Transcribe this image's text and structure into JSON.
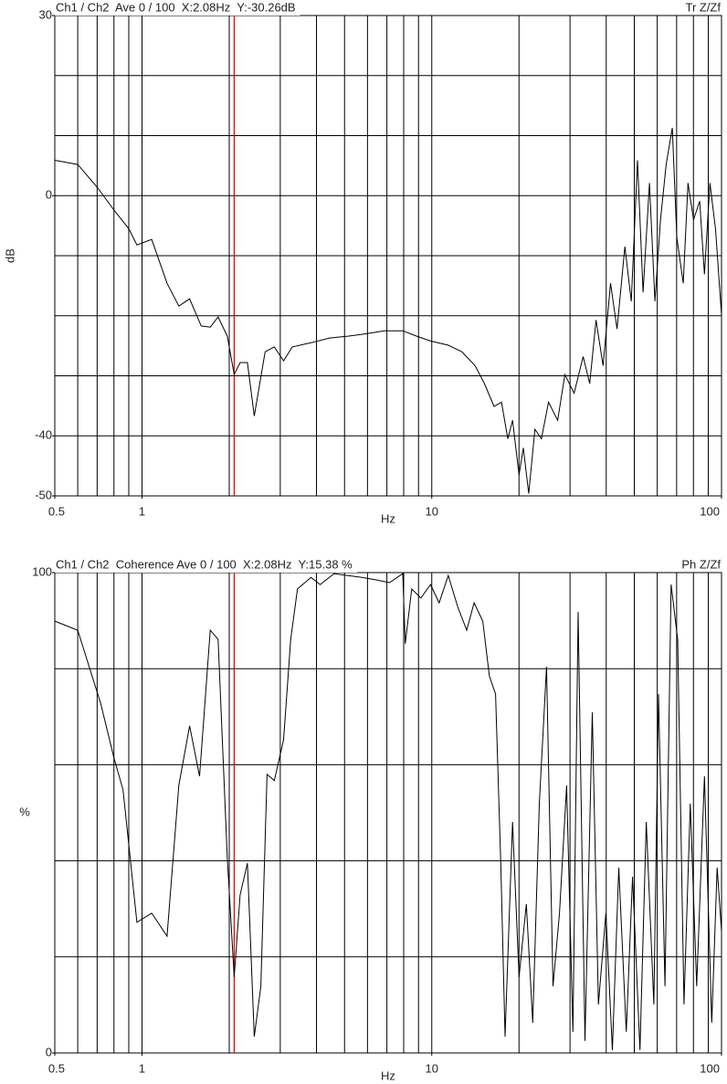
{
  "chart_data": [
    {
      "type": "line",
      "header_left": "Ch1 / Ch2  Ave 0 / 100  X:2.08Hz  Y:-30.26dB",
      "header_right": "Tr Z/Zf",
      "xlabel": "Hz",
      "ylabel": "dB",
      "xscale": "log",
      "xlim": [
        0.5,
        100
      ],
      "ylim": [
        -50,
        30
      ],
      "xticks": [
        0.5,
        1,
        10,
        100
      ],
      "yticks": [
        30,
        0,
        -40,
        -50
      ],
      "xgrid": [
        0.6,
        0.7,
        0.8,
        0.9,
        1,
        2,
        3,
        4,
        5,
        6,
        7,
        8,
        9,
        10,
        20,
        30,
        40,
        50,
        60,
        70,
        80,
        90
      ],
      "ygrid": [
        20,
        10,
        0,
        -10,
        -20,
        -30,
        -40
      ],
      "cursor": {
        "x": 2.08,
        "color": "#e00000"
      },
      "x": [
        0.5,
        0.6,
        0.7,
        0.8,
        0.9,
        0.96,
        1.08,
        1.22,
        1.34,
        1.46,
        1.6,
        1.72,
        1.83,
        1.97,
        2.08,
        2.18,
        2.31,
        2.44,
        2.66,
        2.86,
        3.08,
        3.3,
        3.83,
        4.44,
        5.13,
        5.93,
        6.86,
        7.94,
        8.87,
        9.9,
        11.4,
        12.7,
        14.1,
        15.2,
        16.4,
        17.4,
        18.3,
        19,
        20,
        20.7,
        21.6,
        22.7,
        23.9,
        25.3,
        27.2,
        28.8,
        31,
        33.3,
        35.1,
        36.9,
        39,
        41.4,
        43.6,
        46.4,
        48.8,
        51.3,
        53.6,
        56.4,
        58.9,
        61.6,
        64.4,
        67.6,
        70.1,
        73.8,
        76.6,
        80.1,
        84.1,
        87.3,
        91.2,
        95.3,
        100
      ],
      "series": [
        {
          "color": "#000000",
          "values": [
            5.9,
            5.2,
            1.4,
            -2.4,
            -5.5,
            -8.2,
            -7.3,
            -14.6,
            -18.4,
            -17.2,
            -21.7,
            -21.9,
            -20.2,
            -23.4,
            -29.8,
            -27.8,
            -27.8,
            -36.7,
            -26,
            -25.2,
            -27.5,
            -25.2,
            -24.5,
            -23.7,
            -23.4,
            -23,
            -22.5,
            -22.5,
            -23.4,
            -24.2,
            -24.9,
            -26,
            -28.3,
            -31.3,
            -35.1,
            -34.4,
            -40.5,
            -37.4,
            -46.5,
            -42,
            -49.6,
            -38.9,
            -40.5,
            -34.4,
            -37.4,
            -29.8,
            -32.9,
            -26.8,
            -31.3,
            -20.7,
            -28.3,
            -14.6,
            -22.2,
            -8.5,
            -17.6,
            5.9,
            -16.1,
            2.1,
            -17.6,
            -4,
            5.2,
            11.3,
            -7,
            -14.6,
            2.1,
            -4,
            -0.9,
            -13.1,
            2.1,
            -5.5,
            -19.9
          ]
        }
      ]
    },
    {
      "type": "line",
      "header_left": "Ch1 / Ch2  Coherence Ave 0 / 100  X:2.08Hz  Y:15.38 %",
      "header_right": "Ph Z/Zf",
      "xlabel": "Hz",
      "ylabel": "%",
      "xscale": "log",
      "xlim": [
        0.5,
        100
      ],
      "ylim": [
        0,
        100
      ],
      "xticks": [
        0.5,
        1,
        10,
        100
      ],
      "yticks": [
        100,
        0
      ],
      "xgrid": [
        0.6,
        0.7,
        0.8,
        0.9,
        1,
        2,
        3,
        4,
        5,
        6,
        7,
        8,
        9,
        10,
        20,
        30,
        40,
        50,
        60,
        70,
        80,
        90
      ],
      "ygrid": [
        80,
        60,
        40,
        20
      ],
      "cursor": {
        "x": 2.08,
        "color": "#e00000"
      },
      "x": [
        0.5,
        0.6,
        0.72,
        0.8,
        0.86,
        0.96,
        1.08,
        1.22,
        1.34,
        1.46,
        1.58,
        1.72,
        1.83,
        1.97,
        2.08,
        2.18,
        2.31,
        2.44,
        2.57,
        2.7,
        2.86,
        3.08,
        3.26,
        3.44,
        3.83,
        4.12,
        4.6,
        5.13,
        5.73,
        6.4,
        7.15,
        7.94,
        8.1,
        8.53,
        9.17,
        9.9,
        10.6,
        11.4,
        12.3,
        13.2,
        14,
        15,
        15.8,
        16.6,
        17.3,
        17.9,
        19,
        20,
        21.2,
        22.3,
        23.5,
        24.9,
        26.2,
        27.6,
        29.2,
        30.7,
        32,
        33.8,
        35.8,
        37.6,
        39.9,
        42,
        44.2,
        46.9,
        49.3,
        52.3,
        55,
        58.4,
        60.6,
        63.8,
        67,
        70.6,
        74.2,
        78,
        82.1,
        87.3,
        92.5,
        96.6,
        100
      ],
      "series": [
        {
          "color": "#000000",
          "values": [
            89.9,
            88,
            72.8,
            61.4,
            54.8,
            27.2,
            29.1,
            24.3,
            55.7,
            68.1,
            57.6,
            88,
            86.1,
            40.5,
            15.8,
            32.9,
            39.5,
            3.4,
            13.9,
            58,
            56.7,
            65.2,
            86.1,
            96.6,
            99,
            97.5,
            99.8,
            99.4,
            99,
            98.5,
            97.9,
            99.8,
            85.2,
            96.6,
            94.7,
            97.5,
            93.7,
            99.4,
            92.8,
            88,
            93.7,
            89.9,
            78.5,
            74.7,
            39.5,
            3.4,
            48.1,
            15.8,
            31,
            6.3,
            51.9,
            80.4,
            13.9,
            29.1,
            55.7,
            4.4,
            91.8,
            2.5,
            70.9,
            10.1,
            29.1,
            0.6,
            38.6,
            4.4,
            36.7,
            0.6,
            48.1,
            10.1,
            74.7,
            13.9,
            97.5,
            86.1,
            10.1,
            51.9,
            13.9,
            57.6,
            6.3,
            38.6,
            25.3
          ]
        }
      ]
    }
  ]
}
